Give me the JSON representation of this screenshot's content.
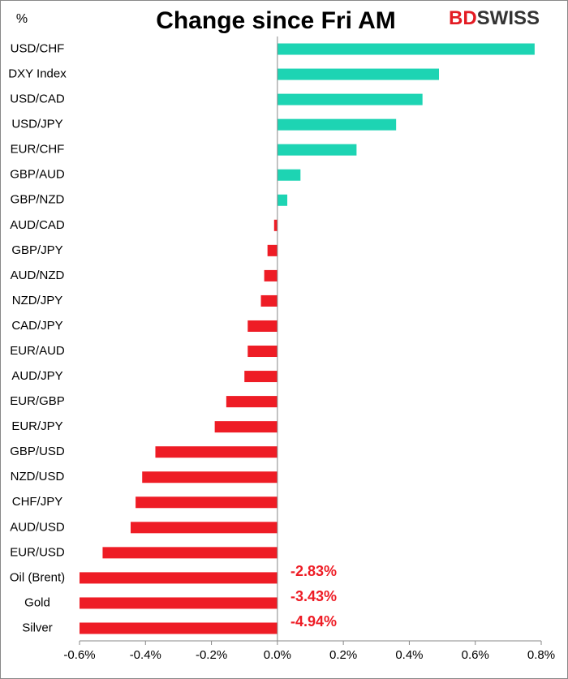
{
  "chart_data": {
    "type": "hbar",
    "title": "Change since Fri AM",
    "ylabel": "%",
    "logo": [
      "BD",
      "SWISS"
    ],
    "categories": [
      "USD/CHF",
      "DXY Index",
      "USD/CAD",
      "USD/JPY",
      "EUR/CHF",
      "GBP/AUD",
      "GBP/NZD",
      "AUD/CAD",
      "GBP/JPY",
      "AUD/NZD",
      "NZD/JPY",
      "CAD/JPY",
      "EUR/AUD",
      "AUD/JPY",
      "EUR/GBP",
      "EUR/JPY",
      "GBP/USD",
      "NZD/USD",
      "CHF/JPY",
      "AUD/USD",
      "EUR/USD",
      "Oil (Brent)",
      "Gold",
      "Silver"
    ],
    "values": [
      0.78,
      0.49,
      0.44,
      0.36,
      0.24,
      0.07,
      0.03,
      -0.01,
      -0.03,
      -0.04,
      -0.05,
      -0.09,
      -0.09,
      -0.1,
      -0.155,
      -0.19,
      -0.37,
      -0.41,
      -0.43,
      -0.445,
      -0.53,
      -2.83,
      -3.43,
      -4.94
    ],
    "value_labels": [
      null,
      null,
      null,
      null,
      null,
      null,
      null,
      null,
      null,
      null,
      null,
      null,
      null,
      null,
      null,
      null,
      null,
      null,
      null,
      null,
      null,
      "-2.83%",
      "-3.43%",
      "-4.94%"
    ],
    "color": "#1dd4b3",
    "negative_color": "#ee1c25",
    "xlim": [
      -0.6,
      0.8
    ],
    "xticks": [
      {
        "value": -0.6,
        "label": "-0.6%"
      },
      {
        "value": -0.4,
        "label": "-0.4%"
      },
      {
        "value": -0.2,
        "label": "-0.2%"
      },
      {
        "value": 0,
        "label": "0.0%"
      },
      {
        "value": 0.2,
        "label": "0.2%"
      },
      {
        "value": 0.4,
        "label": "0.4%"
      },
      {
        "value": 0.6,
        "label": "0.6%"
      },
      {
        "value": 0.8,
        "label": "0.8%"
      }
    ],
    "grid": false
  }
}
